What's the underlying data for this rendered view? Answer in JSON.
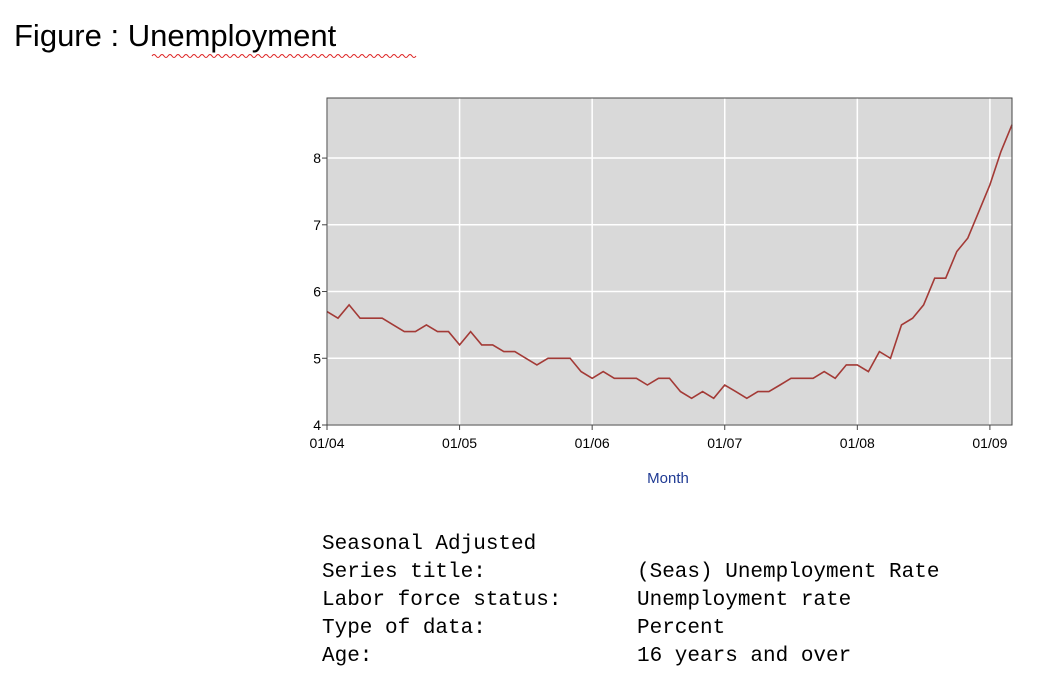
{
  "chart_data": {
    "type": "line",
    "title": "Figure : Unemployment",
    "x_label": "Month",
    "categories": [
      "01/04",
      null,
      null,
      null,
      null,
      null,
      null,
      null,
      null,
      null,
      null,
      null,
      "01/05",
      null,
      null,
      null,
      null,
      null,
      null,
      null,
      null,
      null,
      null,
      null,
      "01/06",
      null,
      null,
      null,
      null,
      null,
      null,
      null,
      null,
      null,
      null,
      null,
      "01/07",
      null,
      null,
      null,
      null,
      null,
      null,
      null,
      null,
      null,
      null,
      null,
      "01/08",
      null,
      null,
      null,
      null,
      null,
      null,
      null,
      null,
      null,
      null,
      null,
      "01/09",
      null,
      null
    ],
    "series": [
      {
        "color": "#a33a36",
        "values": [
          5.7,
          5.6,
          5.8,
          5.6,
          5.6,
          5.6,
          5.5,
          5.4,
          5.4,
          5.5,
          5.4,
          5.4,
          5.2,
          5.4,
          5.2,
          5.2,
          5.1,
          5.1,
          5.0,
          4.9,
          5.0,
          5.0,
          5.0,
          4.8,
          4.7,
          4.8,
          4.7,
          4.7,
          4.7,
          4.6,
          4.7,
          4.7,
          4.5,
          4.4,
          4.5,
          4.4,
          4.6,
          4.5,
          4.4,
          4.5,
          4.5,
          4.6,
          4.7,
          4.7,
          4.7,
          4.8,
          4.7,
          4.9,
          4.9,
          4.8,
          5.1,
          5.0,
          5.5,
          5.6,
          5.8,
          6.2,
          6.2,
          6.6,
          6.8,
          7.2,
          7.6,
          8.1,
          8.5
        ]
      }
    ],
    "ylim": [
      4,
      8.9
    ],
    "yticks": [
      4,
      5,
      6,
      7,
      8
    ],
    "grid": true
  },
  "details": {
    "heading": "Seasonal Adjusted",
    "rows": [
      [
        "Series title:",
        "(Seas) Unemployment Rate"
      ],
      [
        "Labor force status:",
        "Unemployment rate"
      ],
      [
        "Type of data:",
        "Percent"
      ],
      [
        "Age:",
        "16 years and over"
      ]
    ]
  }
}
